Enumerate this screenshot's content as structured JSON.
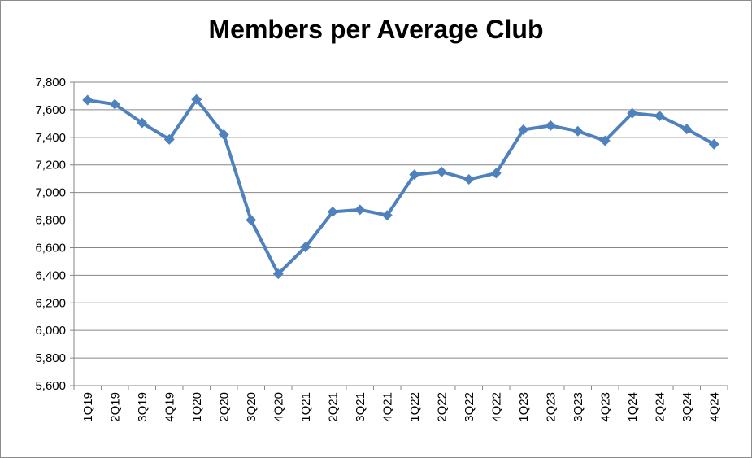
{
  "chart_data": {
    "type": "line",
    "title": "Members per Average Club",
    "xlabel": "",
    "ylabel": "",
    "categories": [
      "1Q19",
      "2Q19",
      "3Q19",
      "4Q19",
      "1Q20",
      "2Q20",
      "3Q20",
      "4Q20",
      "1Q21",
      "2Q21",
      "3Q21",
      "4Q21",
      "1Q22",
      "2Q22",
      "3Q22",
      "4Q22",
      "1Q23",
      "2Q23",
      "3Q23",
      "4Q23",
      "1Q24",
      "2Q24",
      "3Q24",
      "4Q24"
    ],
    "series": [
      {
        "values": [
          7670,
          7640,
          7505,
          7385,
          7675,
          7420,
          6800,
          6410,
          6605,
          6860,
          6875,
          6835,
          7130,
          7150,
          7095,
          7140,
          7455,
          7485,
          7445,
          7375,
          7575,
          7555,
          7460,
          7350
        ],
        "color": "#4f81bd",
        "marker": "diamond"
      }
    ],
    "ylim": [
      5600,
      7800
    ],
    "yticks": [
      5600,
      5800,
      6000,
      6200,
      6400,
      6600,
      6800,
      7000,
      7200,
      7400,
      7600,
      7800
    ],
    "ytick_labels": [
      "5,600",
      "5,800",
      "6,000",
      "6,200",
      "6,400",
      "6,600",
      "6,800",
      "7,000",
      "7,200",
      "7,400",
      "7,600",
      "7,800"
    ],
    "grid": true,
    "legend": "none",
    "gridline_color": "#868686"
  }
}
